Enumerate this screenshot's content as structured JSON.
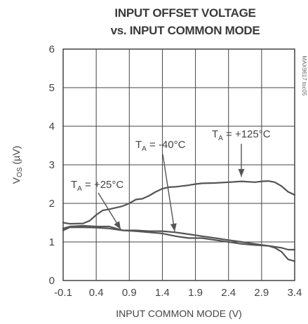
{
  "chart_data": {
    "type": "line",
    "title": [
      "INPUT OFFSET VOLTAGE",
      "vs. INPUT COMMON MODE"
    ],
    "xlabel": "INPUT COMMON MODE (V)",
    "ylabel": {
      "main": "V",
      "sub": "OS",
      "unit": " (µV)"
    },
    "xlim": [
      -0.1,
      3.4
    ],
    "ylim": [
      0,
      6
    ],
    "xticks": [
      -0.1,
      0.4,
      0.9,
      1.4,
      1.9,
      2.4,
      2.9,
      3.4
    ],
    "xtick_labels": [
      "-0.1",
      "0.4",
      "0.9",
      "1.4",
      "1.9",
      "2.4",
      "2.9",
      "3.4"
    ],
    "yticks": [
      0,
      1,
      2,
      3,
      4,
      5,
      6
    ],
    "ytick_labels": [
      "0",
      "1",
      "2",
      "3",
      "4",
      "5",
      "6"
    ],
    "grid": true,
    "figure_code": "MAX9617 toc05",
    "series": [
      {
        "label_main": "T",
        "label_sub": "A",
        "label_rest": " = +125°C",
        "x": [
          -0.1,
          0.0,
          0.2,
          0.3,
          0.4,
          0.5,
          0.6,
          0.8,
          0.9,
          1.0,
          1.1,
          1.2,
          1.3,
          1.4,
          1.5,
          1.6,
          1.8,
          1.9,
          2.0,
          2.2,
          2.4,
          2.6,
          2.8,
          2.9,
          3.0,
          3.1,
          3.2,
          3.3,
          3.4
        ],
        "y": [
          1.5,
          1.47,
          1.48,
          1.55,
          1.7,
          1.82,
          1.85,
          1.93,
          2.0,
          2.1,
          2.12,
          2.2,
          2.3,
          2.38,
          2.42,
          2.43,
          2.47,
          2.5,
          2.52,
          2.53,
          2.55,
          2.57,
          2.55,
          2.57,
          2.58,
          2.55,
          2.45,
          2.3,
          2.22
        ]
      },
      {
        "label_main": "T",
        "label_sub": "A",
        "label_rest": " = +25°C",
        "x": [
          -0.1,
          0.0,
          0.2,
          0.4,
          0.6,
          0.7,
          0.8,
          1.0,
          1.2,
          1.4,
          1.6,
          1.8,
          2.0,
          2.2,
          2.4,
          2.6,
          2.8,
          3.0,
          3.2,
          3.3,
          3.4
        ],
        "y": [
          1.35,
          1.4,
          1.42,
          1.4,
          1.4,
          1.35,
          1.3,
          1.28,
          1.25,
          1.22,
          1.15,
          1.1,
          1.1,
          1.05,
          1.0,
          0.95,
          0.92,
          0.9,
          0.85,
          0.8,
          0.8
        ]
      },
      {
        "label_main": "T",
        "label_sub": "A",
        "label_rest": " = -40°C",
        "x": [
          -0.1,
          0.0,
          0.2,
          0.4,
          0.6,
          0.8,
          1.0,
          1.2,
          1.4,
          1.6,
          1.8,
          2.0,
          2.2,
          2.4,
          2.6,
          2.8,
          3.0,
          3.1,
          3.2,
          3.3,
          3.4
        ],
        "y": [
          1.3,
          1.38,
          1.38,
          1.37,
          1.35,
          1.3,
          1.3,
          1.28,
          1.28,
          1.25,
          1.2,
          1.15,
          1.1,
          1.05,
          1.0,
          0.95,
          0.9,
          0.85,
          0.75,
          0.55,
          0.5
        ]
      }
    ]
  }
}
